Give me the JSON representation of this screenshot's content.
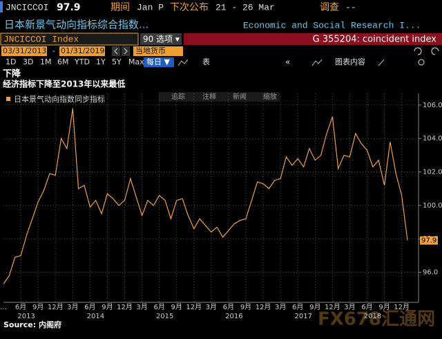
{
  "header": {
    "ticker": "JNCICCOI",
    "last": "97.9",
    "period_label": "期间",
    "period": "Jan P",
    "next_label": "下次公布",
    "next": "21 - 26 Mar",
    "survey_label": "调查",
    "survey": "--",
    "name_cn": "日本新景气动向指标综合指数...",
    "source_name": "Economic and Social Research I..."
  },
  "toolbar": {
    "security": "JNCICCOI Index",
    "options": "90 选项 ▾",
    "page": "G 355204: coincident index",
    "start": "03/31/2013",
    "dash": "-",
    "end": "01/31/2019",
    "currency": "当地货币",
    "ranges": [
      "1D",
      "3D",
      "1M",
      "6M",
      "YTD",
      "1Y",
      "5Y",
      "Max"
    ],
    "frequency": "每日 ▼",
    "table": "表",
    "chart_content": "图表内容"
  },
  "chart_tools": [
    "追踪",
    "注释",
    "新闻",
    "缩放"
  ],
  "watermark": "FX678汇通网",
  "chart_data": {
    "type": "line",
    "title": "下降",
    "subtitle": "经济指标下降至2013年以来最低",
    "source": "Source: 内阁府",
    "categories": [
      "…",
      null,
      null,
      "6月",
      null,
      null,
      "9月",
      null,
      null,
      "12月",
      null,
      null,
      "3月",
      null,
      null,
      "6月",
      null,
      null,
      "9月",
      null,
      null,
      "12月",
      null,
      null,
      "3月",
      null,
      null,
      "6月",
      null,
      null,
      "9月",
      null,
      null,
      "12月",
      null,
      null,
      "3月",
      null,
      null,
      "6月",
      null,
      null,
      "9月",
      null,
      null,
      "12月",
      null,
      null,
      "3月",
      null,
      null,
      "6月",
      null,
      null,
      "9月",
      null,
      null,
      "12月",
      null,
      null,
      "3月",
      null,
      null,
      "6月",
      null,
      null,
      "9月",
      null,
      null,
      "12月",
      null
    ],
    "years": [
      "2013",
      "2014",
      "2015",
      "2016",
      "2017",
      "2018"
    ],
    "series": [
      {
        "name": "日本景气动向指数同步指标",
        "color": "#f0a040",
        "values": [
          95.3,
          95.8,
          96.9,
          97.0,
          98.2,
          99.2,
          100.2,
          100.9,
          101.9,
          101.8,
          104.0,
          103.4,
          105.8,
          101.0,
          101.2,
          99.9,
          100.3,
          99.5,
          100.7,
          100.4,
          100.0,
          100.3,
          101.6,
          100.5,
          99.4,
          100.3,
          100.0,
          100.6,
          100.3,
          99.2,
          100.3,
          100.4,
          99.4,
          98.6,
          99.2,
          98.8,
          98.4,
          98.7,
          98.1,
          98.5,
          98.9,
          99.1,
          99.2,
          100.3,
          101.4,
          101.3,
          101.0,
          101.5,
          101.6,
          102.9,
          102.4,
          102.8,
          102.3,
          103.4,
          102.7,
          103.0,
          104.3,
          105.3,
          102.2,
          103.0,
          102.9,
          104.3,
          103.7,
          103.3,
          102.3,
          102.7,
          101.2,
          103.8,
          101.9,
          100.6,
          97.9
        ]
      }
    ],
    "ylim": [
      94.2,
      106.7
    ],
    "yticks": [
      {
        "value": 96,
        "label": "96.0"
      },
      {
        "value": 98,
        "label": "98.0"
      },
      {
        "value": 100,
        "label": "100.0"
      },
      {
        "value": 102,
        "label": "102.0"
      },
      {
        "value": 104,
        "label": "104.0"
      },
      {
        "value": 106,
        "label": "106.0"
      }
    ],
    "grid": true
  }
}
